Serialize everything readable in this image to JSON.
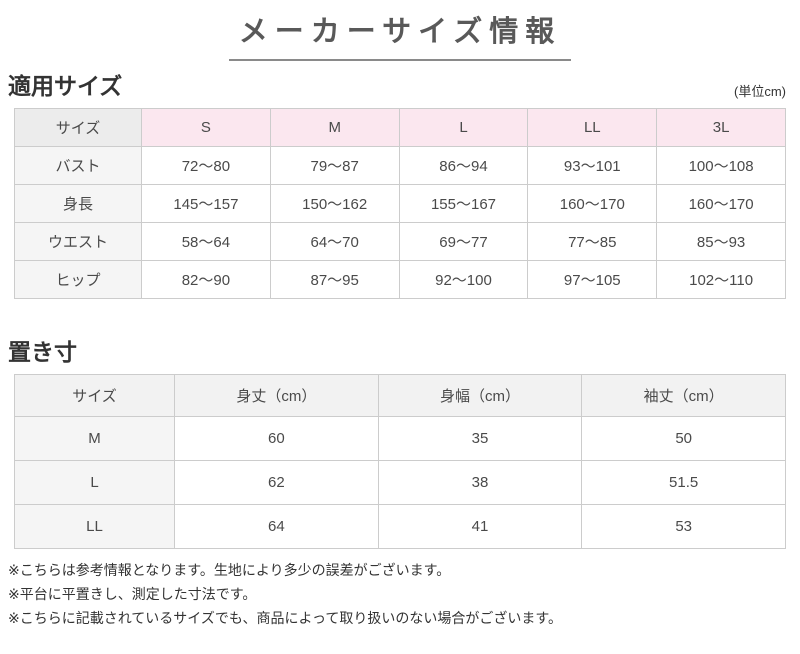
{
  "page": {
    "title": "メーカーサイズ情報"
  },
  "applicable_size": {
    "heading": "適用サイズ",
    "unit_note": "(単位cm)",
    "table": {
      "corner_label": "サイズ",
      "columns": [
        "S",
        "M",
        "L",
        "LL",
        "3L"
      ],
      "rows": [
        {
          "label": "バスト",
          "values": [
            "72～80",
            "79～87",
            "86～94",
            "93～101",
            "100～108"
          ]
        },
        {
          "label": "身長",
          "values": [
            "145～157",
            "150～162",
            "155～167",
            "160～170",
            "160～170"
          ]
        },
        {
          "label": "ウエスト",
          "values": [
            "58～64",
            "64～70",
            "69～77",
            "77～85",
            "85～93"
          ]
        },
        {
          "label": "ヒップ",
          "values": [
            "82～90",
            "87～95",
            "92～100",
            "97～105",
            "102～110"
          ]
        }
      ]
    }
  },
  "flat_measurements": {
    "heading": "置き寸",
    "table": {
      "corner_label": "サイズ",
      "columns": [
        "身丈（cm）",
        "身幅（cm）",
        "袖丈（cm）"
      ],
      "rows": [
        {
          "label": "M",
          "values": [
            "60",
            "35",
            "50"
          ]
        },
        {
          "label": "L",
          "values": [
            "62",
            "38",
            "51.5"
          ]
        },
        {
          "label": "LL",
          "values": [
            "64",
            "41",
            "53"
          ]
        }
      ]
    }
  },
  "notes": [
    "※こちらは参考情報となります。生地により多少の誤差がございます。",
    "※平台に平置きし、測定した寸法です。",
    "※こちらに記載されているサイズでも、商品によって取り扱いのない場合がございます。"
  ],
  "colors": {
    "pink_header_bg": "#fbe7ef",
    "gray_header_bg": "#ececec",
    "label_cell_bg": "#f5f5f5",
    "border": "#cccccc",
    "title_text": "#595959",
    "body_text": "#4a4a4a"
  }
}
